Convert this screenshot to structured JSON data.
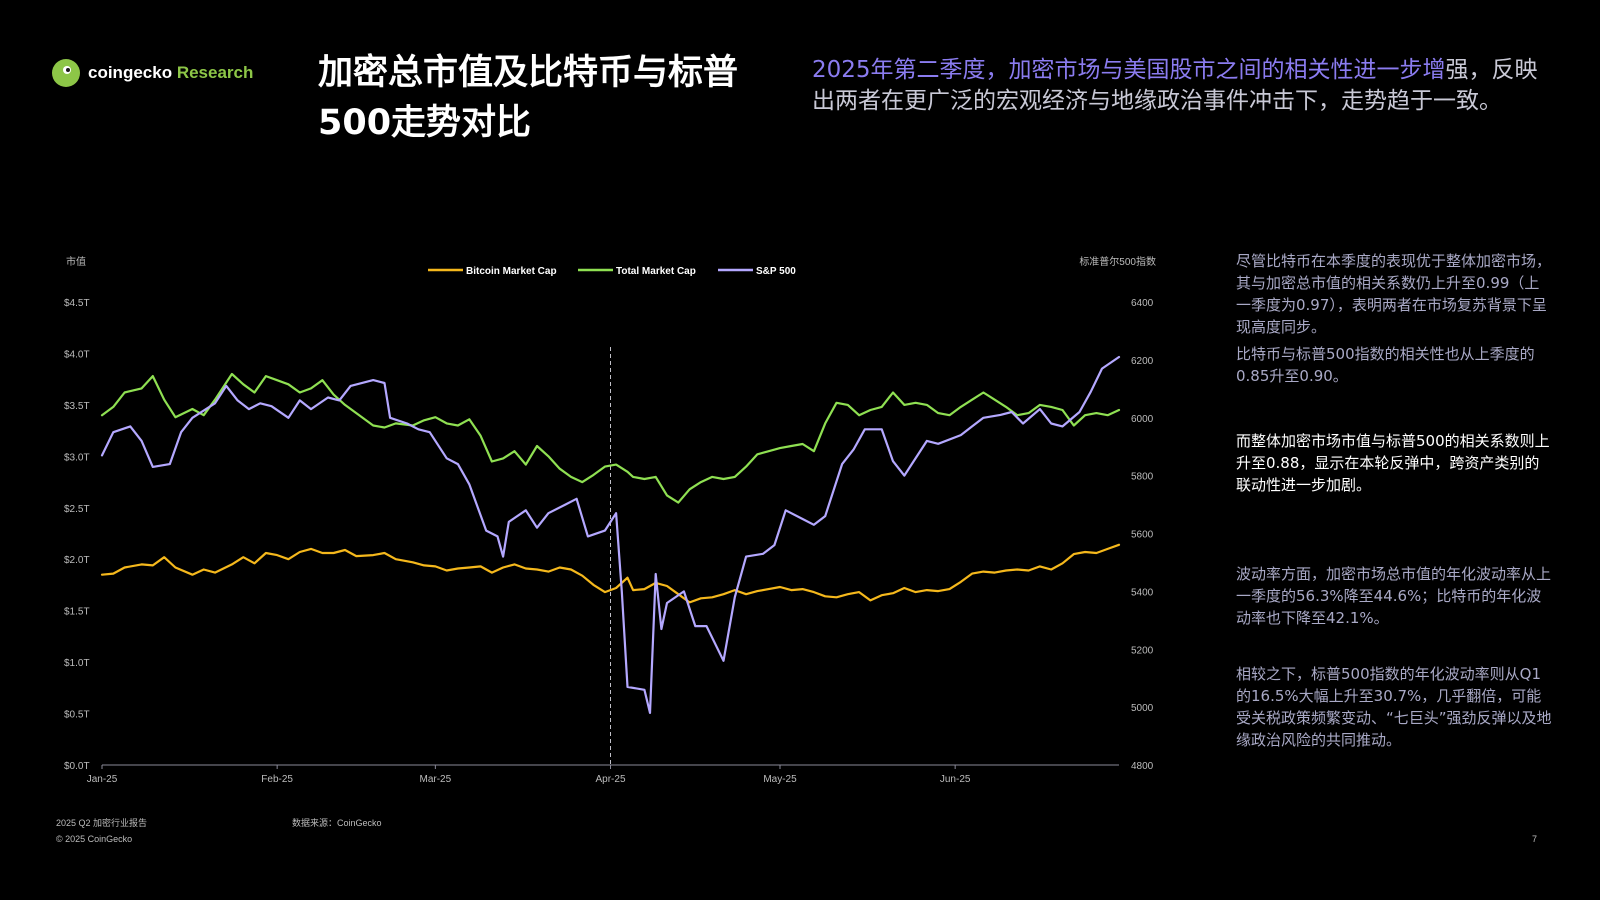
{
  "brand": {
    "name": "coingecko",
    "suffix": "Research"
  },
  "title": "加密总市值及比特币与标普500走势对比",
  "subtitle": {
    "part1": "2025年第二季度，加密市场与美国股市之间的相关性进一步增",
    "part2": "强，反映出两者在更广泛的宏观经济与地缘政治事件冲击下，走势趋于一致。"
  },
  "side_notes": {
    "p1": "尽管比特币在本季度的表现优于整体加密市场，其与加密总市值的相关系数仍上升至0.99（上一季度为0.97），表明两者在市场复苏背景下呈现高度同步。",
    "p2": "比特币与标普500指数的相关性也从上季度的0.85升至0.90。",
    "p3": "而整体加密市场市值与标普500的相关系数则上升至0.88，显示在本轮反弹中，跨资产类别的联动性进一步加剧。",
    "p4": "波动率方面，加密市场总市值的年化波动率从上一季度的56.3%降至44.6%；比特币的年化波动率也下降至42.1%。",
    "p5": "相较之下，标普500指数的年化波动率则从Q1的16.5%大幅上升至30.7%，几乎翻倍，可能受关税政策频繁变动、“七巨头”强劲反弹以及地缘政治风险的共同推动。"
  },
  "footer": {
    "report": "2025 Q2 加密行业报告",
    "source": "数据来源：CoinGecko",
    "copyright": "© 2025 CoinGecko",
    "page": "7"
  },
  "chart_data": {
    "type": "line",
    "ylabel": "市值",
    "y2label": "标准普尔500指数",
    "ylim": [
      0,
      4.5
    ],
    "y2lim": [
      4800,
      6400
    ],
    "yticks": [
      "$0.0T",
      "$0.5T",
      "$1.0T",
      "$1.5T",
      "$2.0T",
      "$2.5T",
      "$3.0T",
      "$3.5T",
      "$4.0T",
      "$4.5T"
    ],
    "y2ticks": [
      "4800",
      "5000",
      "5200",
      "5400",
      "5600",
      "5800",
      "6000",
      "6200",
      "6400"
    ],
    "xticks": [
      "Jan-25",
      "Feb-25",
      "Mar-25",
      "Apr-25",
      "May-25",
      "Jun-25"
    ],
    "xrange": [
      "2025-01-01",
      "2025-06-30"
    ],
    "marker": {
      "date": "2025-04-01",
      "style": "dashed"
    },
    "grid": false,
    "legend_position": "top-center",
    "series": [
      {
        "name": "Bitcoin Market Cap",
        "axis": "left",
        "color": "#f5b81c",
        "points": [
          [
            "2025-01-01",
            1.85
          ],
          [
            "2025-01-03",
            1.86
          ],
          [
            "2025-01-05",
            1.92
          ],
          [
            "2025-01-08",
            1.95
          ],
          [
            "2025-01-10",
            1.94
          ],
          [
            "2025-01-12",
            2.02
          ],
          [
            "2025-01-14",
            1.92
          ],
          [
            "2025-01-17",
            1.85
          ],
          [
            "2025-01-19",
            1.9
          ],
          [
            "2025-01-21",
            1.87
          ],
          [
            "2025-01-24",
            1.95
          ],
          [
            "2025-01-26",
            2.02
          ],
          [
            "2025-01-28",
            1.96
          ],
          [
            "2025-01-30",
            2.06
          ],
          [
            "2025-02-01",
            2.04
          ],
          [
            "2025-02-03",
            2.0
          ],
          [
            "2025-02-05",
            2.07
          ],
          [
            "2025-02-07",
            2.1
          ],
          [
            "2025-02-09",
            2.06
          ],
          [
            "2025-02-11",
            2.06
          ],
          [
            "2025-02-13",
            2.09
          ],
          [
            "2025-02-15",
            2.03
          ],
          [
            "2025-02-18",
            2.04
          ],
          [
            "2025-02-20",
            2.06
          ],
          [
            "2025-02-22",
            2.0
          ],
          [
            "2025-02-25",
            1.97
          ],
          [
            "2025-02-27",
            1.94
          ],
          [
            "2025-03-01",
            1.93
          ],
          [
            "2025-03-03",
            1.89
          ],
          [
            "2025-03-05",
            1.91
          ],
          [
            "2025-03-07",
            1.92
          ],
          [
            "2025-03-09",
            1.93
          ],
          [
            "2025-03-11",
            1.87
          ],
          [
            "2025-03-13",
            1.92
          ],
          [
            "2025-03-15",
            1.95
          ],
          [
            "2025-03-17",
            1.91
          ],
          [
            "2025-03-19",
            1.9
          ],
          [
            "2025-03-21",
            1.88
          ],
          [
            "2025-03-23",
            1.92
          ],
          [
            "2025-03-25",
            1.9
          ],
          [
            "2025-03-27",
            1.84
          ],
          [
            "2025-03-29",
            1.75
          ],
          [
            "2025-03-31",
            1.68
          ],
          [
            "2025-04-02",
            1.72
          ],
          [
            "2025-04-04",
            1.82
          ],
          [
            "2025-04-05",
            1.7
          ],
          [
            "2025-04-07",
            1.71
          ],
          [
            "2025-04-09",
            1.77
          ],
          [
            "2025-04-11",
            1.74
          ],
          [
            "2025-04-13",
            1.66
          ],
          [
            "2025-04-15",
            1.58
          ],
          [
            "2025-04-17",
            1.62
          ],
          [
            "2025-04-19",
            1.63
          ],
          [
            "2025-04-21",
            1.66
          ],
          [
            "2025-04-23",
            1.7
          ],
          [
            "2025-04-25",
            1.66
          ],
          [
            "2025-04-27",
            1.69
          ],
          [
            "2025-04-29",
            1.71
          ],
          [
            "2025-05-01",
            1.73
          ],
          [
            "2025-05-03",
            1.7
          ],
          [
            "2025-05-05",
            1.71
          ],
          [
            "2025-05-07",
            1.68
          ],
          [
            "2025-05-09",
            1.64
          ],
          [
            "2025-05-11",
            1.63
          ],
          [
            "2025-05-13",
            1.66
          ],
          [
            "2025-05-15",
            1.68
          ],
          [
            "2025-05-17",
            1.6
          ],
          [
            "2025-05-19",
            1.65
          ],
          [
            "2025-05-21",
            1.67
          ],
          [
            "2025-05-23",
            1.72
          ],
          [
            "2025-05-25",
            1.68
          ],
          [
            "2025-05-27",
            1.7
          ],
          [
            "2025-05-29",
            1.69
          ],
          [
            "2025-05-31",
            1.71
          ],
          [
            "2025-06-02",
            1.78
          ],
          [
            "2025-06-04",
            1.86
          ],
          [
            "2025-06-06",
            1.88
          ],
          [
            "2025-06-08",
            1.87
          ],
          [
            "2025-06-10",
            1.89
          ],
          [
            "2025-06-12",
            1.9
          ],
          [
            "2025-06-14",
            1.89
          ],
          [
            "2025-06-16",
            1.93
          ],
          [
            "2025-06-18",
            1.9
          ],
          [
            "2025-06-20",
            1.96
          ],
          [
            "2025-06-22",
            2.05
          ],
          [
            "2025-06-24",
            2.07
          ],
          [
            "2025-06-26",
            2.06
          ],
          [
            "2025-06-28",
            2.1
          ],
          [
            "2025-06-30",
            2.14
          ]
        ]
      },
      {
        "name": "Total Market Cap",
        "axis": "left",
        "color": "#8fe052",
        "points": [
          [
            "2025-01-01",
            3.4
          ],
          [
            "2025-01-03",
            3.48
          ],
          [
            "2025-01-05",
            3.62
          ],
          [
            "2025-01-08",
            3.66
          ],
          [
            "2025-01-10",
            3.78
          ],
          [
            "2025-01-12",
            3.55
          ],
          [
            "2025-01-14",
            3.38
          ],
          [
            "2025-01-17",
            3.46
          ],
          [
            "2025-01-19",
            3.4
          ],
          [
            "2025-01-21",
            3.55
          ],
          [
            "2025-01-24",
            3.8
          ],
          [
            "2025-01-26",
            3.7
          ],
          [
            "2025-01-28",
            3.62
          ],
          [
            "2025-01-30",
            3.78
          ],
          [
            "2025-02-01",
            3.74
          ],
          [
            "2025-02-03",
            3.7
          ],
          [
            "2025-02-05",
            3.62
          ],
          [
            "2025-02-07",
            3.66
          ],
          [
            "2025-02-09",
            3.74
          ],
          [
            "2025-02-11",
            3.6
          ],
          [
            "2025-02-13",
            3.5
          ],
          [
            "2025-02-15",
            3.42
          ],
          [
            "2025-02-18",
            3.3
          ],
          [
            "2025-02-20",
            3.28
          ],
          [
            "2025-02-22",
            3.32
          ],
          [
            "2025-02-25",
            3.3
          ],
          [
            "2025-02-27",
            3.35
          ],
          [
            "2025-03-01",
            3.38
          ],
          [
            "2025-03-03",
            3.32
          ],
          [
            "2025-03-05",
            3.3
          ],
          [
            "2025-03-07",
            3.36
          ],
          [
            "2025-03-09",
            3.2
          ],
          [
            "2025-03-11",
            2.95
          ],
          [
            "2025-03-13",
            2.98
          ],
          [
            "2025-03-15",
            3.05
          ],
          [
            "2025-03-17",
            2.92
          ],
          [
            "2025-03-19",
            3.1
          ],
          [
            "2025-03-21",
            3.0
          ],
          [
            "2025-03-23",
            2.88
          ],
          [
            "2025-03-25",
            2.8
          ],
          [
            "2025-03-27",
            2.75
          ],
          [
            "2025-03-29",
            2.82
          ],
          [
            "2025-03-31",
            2.9
          ],
          [
            "2025-04-02",
            2.92
          ],
          [
            "2025-04-04",
            2.85
          ],
          [
            "2025-04-05",
            2.8
          ],
          [
            "2025-04-07",
            2.78
          ],
          [
            "2025-04-09",
            2.8
          ],
          [
            "2025-04-11",
            2.62
          ],
          [
            "2025-04-13",
            2.55
          ],
          [
            "2025-04-15",
            2.68
          ],
          [
            "2025-04-17",
            2.75
          ],
          [
            "2025-04-19",
            2.8
          ],
          [
            "2025-04-21",
            2.78
          ],
          [
            "2025-04-23",
            2.8
          ],
          [
            "2025-04-25",
            2.9
          ],
          [
            "2025-04-27",
            3.02
          ],
          [
            "2025-04-29",
            3.05
          ],
          [
            "2025-05-01",
            3.08
          ],
          [
            "2025-05-03",
            3.1
          ],
          [
            "2025-05-05",
            3.12
          ],
          [
            "2025-05-07",
            3.05
          ],
          [
            "2025-05-09",
            3.32
          ],
          [
            "2025-05-11",
            3.52
          ],
          [
            "2025-05-13",
            3.5
          ],
          [
            "2025-05-15",
            3.4
          ],
          [
            "2025-05-17",
            3.45
          ],
          [
            "2025-05-19",
            3.48
          ],
          [
            "2025-05-21",
            3.62
          ],
          [
            "2025-05-23",
            3.5
          ],
          [
            "2025-05-25",
            3.52
          ],
          [
            "2025-05-27",
            3.5
          ],
          [
            "2025-05-29",
            3.42
          ],
          [
            "2025-05-31",
            3.4
          ],
          [
            "2025-06-02",
            3.48
          ],
          [
            "2025-06-04",
            3.55
          ],
          [
            "2025-06-06",
            3.62
          ],
          [
            "2025-06-08",
            3.55
          ],
          [
            "2025-06-10",
            3.48
          ],
          [
            "2025-06-12",
            3.4
          ],
          [
            "2025-06-14",
            3.42
          ],
          [
            "2025-06-16",
            3.5
          ],
          [
            "2025-06-18",
            3.48
          ],
          [
            "2025-06-20",
            3.45
          ],
          [
            "2025-06-22",
            3.3
          ],
          [
            "2025-06-24",
            3.4
          ],
          [
            "2025-06-26",
            3.42
          ],
          [
            "2025-06-28",
            3.4
          ],
          [
            "2025-06-30",
            3.45
          ]
        ]
      },
      {
        "name": "S&P 500",
        "axis": "right",
        "color": "#b4a8ff",
        "points": [
          [
            "2025-01-01",
            5870
          ],
          [
            "2025-01-03",
            5950
          ],
          [
            "2025-01-06",
            5970
          ],
          [
            "2025-01-08",
            5920
          ],
          [
            "2025-01-10",
            5830
          ],
          [
            "2025-01-13",
            5840
          ],
          [
            "2025-01-15",
            5950
          ],
          [
            "2025-01-17",
            6000
          ],
          [
            "2025-01-21",
            6050
          ],
          [
            "2025-01-23",
            6110
          ],
          [
            "2025-01-25",
            6060
          ],
          [
            "2025-01-27",
            6030
          ],
          [
            "2025-01-29",
            6050
          ],
          [
            "2025-01-31",
            6040
          ],
          [
            "2025-02-03",
            6000
          ],
          [
            "2025-02-05",
            6060
          ],
          [
            "2025-02-07",
            6030
          ],
          [
            "2025-02-10",
            6070
          ],
          [
            "2025-02-12",
            6060
          ],
          [
            "2025-02-14",
            6110
          ],
          [
            "2025-02-18",
            6130
          ],
          [
            "2025-02-20",
            6120
          ],
          [
            "2025-02-21",
            6000
          ],
          [
            "2025-02-24",
            5980
          ],
          [
            "2025-02-26",
            5960
          ],
          [
            "2025-02-28",
            5950
          ],
          [
            "2025-03-03",
            5860
          ],
          [
            "2025-03-05",
            5840
          ],
          [
            "2025-03-07",
            5770
          ],
          [
            "2025-03-10",
            5610
          ],
          [
            "2025-03-12",
            5590
          ],
          [
            "2025-03-13",
            5520
          ],
          [
            "2025-03-14",
            5640
          ],
          [
            "2025-03-17",
            5680
          ],
          [
            "2025-03-19",
            5620
          ],
          [
            "2025-03-21",
            5670
          ],
          [
            "2025-03-24",
            5700
          ],
          [
            "2025-03-26",
            5720
          ],
          [
            "2025-03-28",
            5590
          ],
          [
            "2025-03-31",
            5610
          ],
          [
            "2025-04-02",
            5670
          ],
          [
            "2025-04-03",
            5400
          ],
          [
            "2025-04-04",
            5070
          ],
          [
            "2025-04-07",
            5060
          ],
          [
            "2025-04-08",
            4980
          ],
          [
            "2025-04-09",
            5460
          ],
          [
            "2025-04-10",
            5270
          ],
          [
            "2025-04-11",
            5360
          ],
          [
            "2025-04-14",
            5400
          ],
          [
            "2025-04-16",
            5280
          ],
          [
            "2025-04-18",
            5280
          ],
          [
            "2025-04-21",
            5160
          ],
          [
            "2025-04-23",
            5380
          ],
          [
            "2025-04-25",
            5520
          ],
          [
            "2025-04-28",
            5530
          ],
          [
            "2025-04-30",
            5560
          ],
          [
            "2025-05-02",
            5680
          ],
          [
            "2025-05-05",
            5650
          ],
          [
            "2025-05-07",
            5630
          ],
          [
            "2025-05-09",
            5660
          ],
          [
            "2025-05-12",
            5840
          ],
          [
            "2025-05-14",
            5890
          ],
          [
            "2025-05-16",
            5960
          ],
          [
            "2025-05-19",
            5960
          ],
          [
            "2025-05-21",
            5850
          ],
          [
            "2025-05-23",
            5800
          ],
          [
            "2025-05-27",
            5920
          ],
          [
            "2025-05-29",
            5910
          ],
          [
            "2025-06-02",
            5940
          ],
          [
            "2025-06-04",
            5970
          ],
          [
            "2025-06-06",
            6000
          ],
          [
            "2025-06-09",
            6010
          ],
          [
            "2025-06-11",
            6020
          ],
          [
            "2025-06-13",
            5980
          ],
          [
            "2025-06-16",
            6030
          ],
          [
            "2025-06-18",
            5980
          ],
          [
            "2025-06-20",
            5970
          ],
          [
            "2025-06-23",
            6020
          ],
          [
            "2025-06-25",
            6090
          ],
          [
            "2025-06-27",
            6170
          ],
          [
            "2025-06-30",
            6210
          ]
        ]
      }
    ]
  }
}
